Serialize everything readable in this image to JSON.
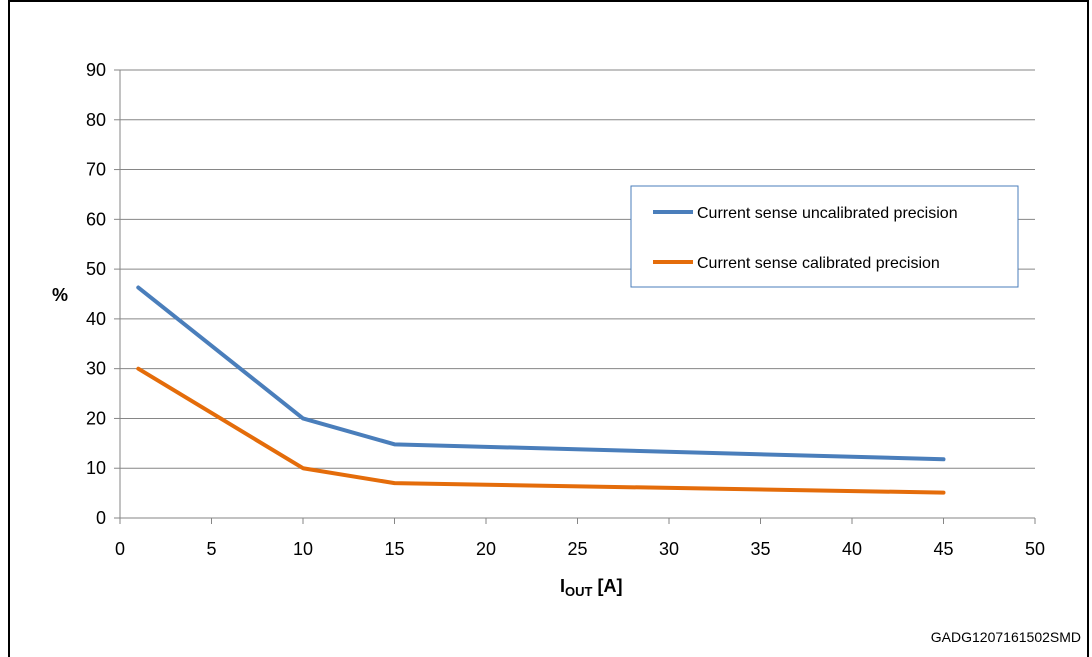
{
  "chart_data": {
    "type": "line",
    "title": "",
    "xlabel_main": "I",
    "xlabel_sub": "OUT",
    "xlabel_unit": "[A]",
    "ylabel": "%",
    "xlim": [
      0,
      50
    ],
    "ylim": [
      0,
      90
    ],
    "xticks": [
      0,
      5,
      10,
      15,
      20,
      25,
      30,
      35,
      40,
      45,
      50
    ],
    "yticks": [
      0,
      10,
      20,
      30,
      40,
      50,
      60,
      70,
      80,
      90
    ],
    "grid": "horizontal",
    "legend_position": "right",
    "series": [
      {
        "name": "Current sense uncalibrated precision",
        "color": "#4a7ebb",
        "x": [
          1,
          10,
          15,
          45
        ],
        "y": [
          46.3,
          20,
          14.8,
          11.8
        ]
      },
      {
        "name": "Current sense calibrated precision",
        "color": "#e46c0a",
        "x": [
          1,
          10,
          15,
          45
        ],
        "y": [
          30,
          10,
          7,
          5.1
        ]
      }
    ]
  },
  "footer": {
    "code": "GADG1207161502SMD"
  }
}
